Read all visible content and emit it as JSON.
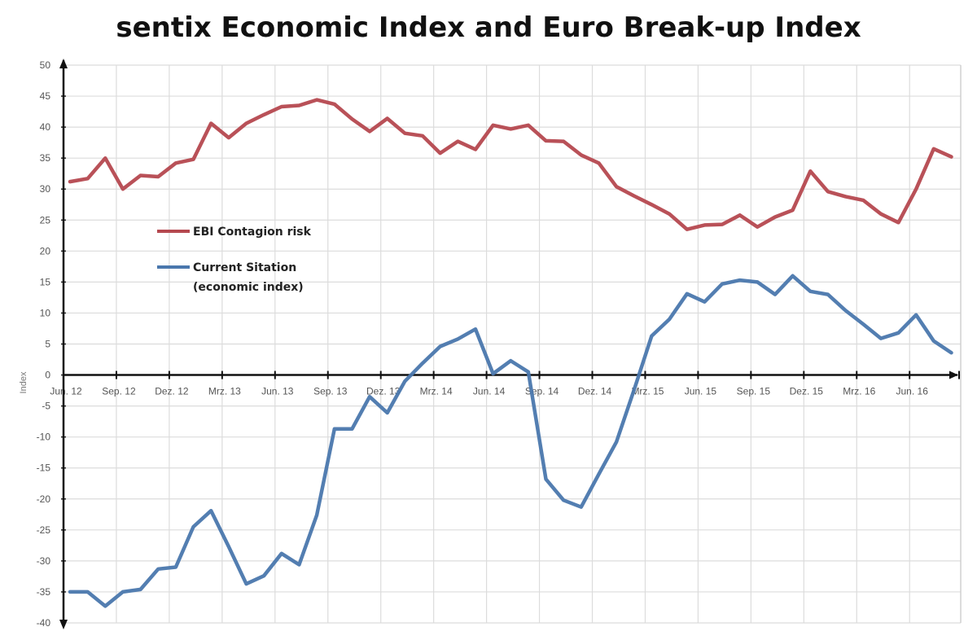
{
  "chart_data": {
    "type": "line",
    "title": "sentix Economic Index and Euro Break-up Index",
    "xlabel": "",
    "ylabel": "Index",
    "ylim": [
      -40,
      50
    ],
    "yticks": [
      50,
      45,
      40,
      35,
      30,
      25,
      20,
      15,
      10,
      5,
      0,
      -5,
      -10,
      -15,
      -20,
      -25,
      -30,
      -35,
      -40
    ],
    "xtick_labels": [
      "Jun. 12",
      "Sep. 12",
      "Dez. 12",
      "Mrz. 13",
      "Jun. 13",
      "Sep. 13",
      "Dez. 13",
      "Mrz. 14",
      "Jun. 14",
      "Sep. 14",
      "Dez. 14",
      "Mrz. 15",
      "Jun. 15",
      "Sep. 15",
      "Dez. 15",
      "Mrz. 16",
      "Jun. 16"
    ],
    "x_start": "Jun. 12",
    "x_step_months": 1,
    "grid": true,
    "legend_position": "upper-left",
    "series": [
      {
        "name": "EBI Contagion risk",
        "color": "#b5484f",
        "values": [
          31.2,
          31.7,
          35.0,
          30.0,
          32.2,
          32.0,
          34.2,
          34.8,
          40.6,
          38.3,
          40.6,
          42.0,
          43.3,
          43.5,
          44.4,
          43.7,
          41.3,
          39.3,
          41.4,
          39.0,
          38.6,
          35.8,
          37.7,
          36.4,
          40.3,
          39.7,
          40.3,
          37.8,
          37.7,
          35.5,
          34.2,
          30.4,
          28.9,
          27.5,
          26.0,
          23.5,
          24.2,
          24.3,
          25.8,
          23.9,
          25.5,
          26.6,
          32.9,
          29.6,
          28.8,
          28.2,
          26.0,
          24.6,
          30.0,
          36.5,
          35.2
        ]
      },
      {
        "name": "Current Sitation (economic index)",
        "legend_lines": [
          "Current Sitation",
          "(economic index)"
        ],
        "color": "#4a77ad",
        "values": [
          -35.0,
          -35.0,
          -37.3,
          -35.0,
          -34.6,
          -31.3,
          -31.0,
          -24.5,
          -21.9,
          -27.7,
          -33.7,
          -32.4,
          -28.8,
          -30.6,
          -22.6,
          -8.7,
          -8.7,
          -3.5,
          -6.1,
          -1.0,
          1.9,
          4.6,
          5.8,
          7.4,
          0.2,
          2.3,
          0.5,
          -16.8,
          -20.2,
          -21.3,
          -16.0,
          -10.8,
          -2.4,
          6.3,
          9.0,
          13.1,
          11.8,
          14.7,
          15.3,
          15.0,
          13.0,
          16.0,
          13.5,
          13.0,
          10.4,
          8.2,
          5.9,
          6.8,
          9.7,
          5.5,
          3.6
        ]
      }
    ]
  }
}
